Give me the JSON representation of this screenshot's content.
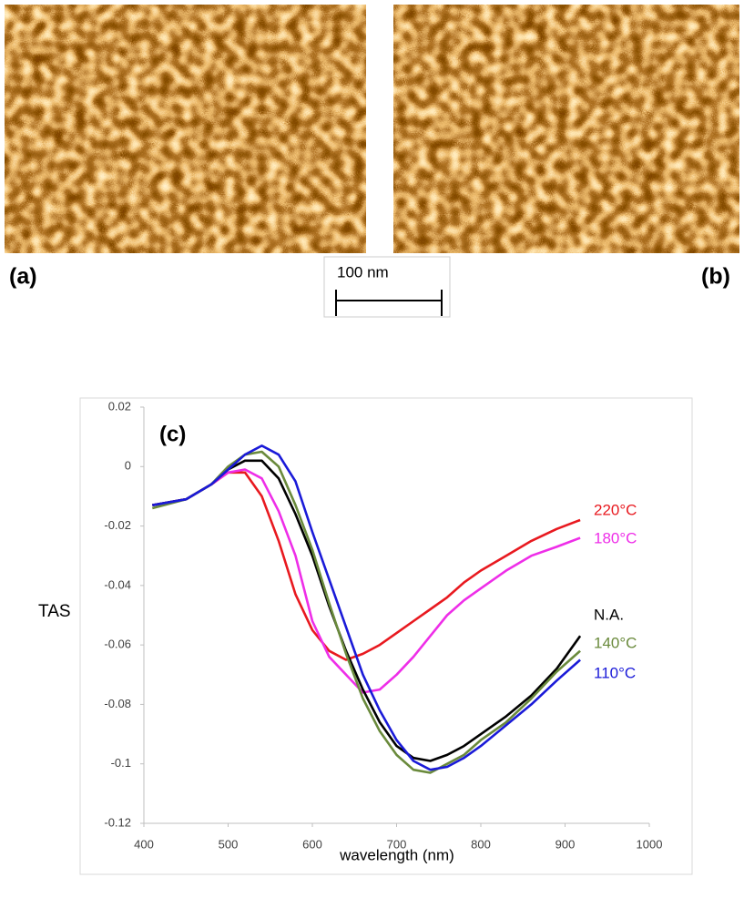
{
  "panels": {
    "label_a": "(a)",
    "label_b": "(b)",
    "scale_bar": "100 nm"
  },
  "chart_data": {
    "type": "line",
    "title": "(c)",
    "x_label": "wavelength (nm)",
    "y_label": "TAS",
    "x": [
      410,
      450,
      480,
      500,
      520,
      540,
      560,
      580,
      600,
      620,
      640,
      660,
      680,
      700,
      720,
      740,
      760,
      780,
      800,
      830,
      860,
      890,
      918
    ],
    "series": [
      {
        "name": "220°C",
        "color": "#e8191f",
        "values": [
          -0.013,
          -0.011,
          -0.006,
          -0.002,
          -0.002,
          -0.01,
          -0.025,
          -0.043,
          -0.055,
          -0.062,
          -0.065,
          -0.063,
          -0.06,
          -0.056,
          -0.052,
          -0.048,
          -0.044,
          -0.039,
          -0.035,
          -0.03,
          -0.025,
          -0.021,
          -0.018
        ]
      },
      {
        "name": "180°C",
        "color": "#ee2ee8",
        "values": [
          -0.013,
          -0.011,
          -0.006,
          -0.002,
          -0.001,
          -0.004,
          -0.015,
          -0.03,
          -0.052,
          -0.064,
          -0.07,
          -0.076,
          -0.075,
          -0.07,
          -0.064,
          -0.057,
          -0.05,
          -0.045,
          -0.041,
          -0.035,
          -0.03,
          -0.027,
          -0.024
        ]
      },
      {
        "name": "N.A.",
        "color": "#000000",
        "values": [
          -0.013,
          -0.011,
          -0.006,
          -0.001,
          0.002,
          0.002,
          -0.004,
          -0.016,
          -0.03,
          -0.047,
          -0.062,
          -0.075,
          -0.086,
          -0.094,
          -0.098,
          -0.099,
          -0.097,
          -0.094,
          -0.09,
          -0.084,
          -0.077,
          -0.068,
          -0.057
        ]
      },
      {
        "name": "140°C",
        "color": "#6a8a3c",
        "values": [
          -0.014,
          -0.011,
          -0.006,
          0.0,
          0.004,
          0.005,
          0.0,
          -0.013,
          -0.028,
          -0.046,
          -0.063,
          -0.078,
          -0.089,
          -0.097,
          -0.102,
          -0.103,
          -0.1,
          -0.097,
          -0.092,
          -0.086,
          -0.078,
          -0.069,
          -0.062
        ]
      },
      {
        "name": "110°C",
        "color": "#1a1ad8",
        "values": [
          -0.013,
          -0.011,
          -0.006,
          -0.001,
          0.004,
          0.007,
          0.004,
          -0.005,
          -0.022,
          -0.038,
          -0.054,
          -0.07,
          -0.082,
          -0.092,
          -0.099,
          -0.102,
          -0.101,
          -0.098,
          -0.094,
          -0.087,
          -0.08,
          -0.072,
          -0.065
        ]
      }
    ],
    "xlim": [
      400,
      1000
    ],
    "xticks": [
      400,
      500,
      600,
      700,
      800,
      900,
      1000
    ],
    "ylim": [
      -0.12,
      0.02
    ],
    "yticks": [
      0.02,
      0,
      -0.02,
      -0.04,
      -0.06,
      -0.08,
      -0.1,
      -0.12
    ],
    "grid": false
  }
}
